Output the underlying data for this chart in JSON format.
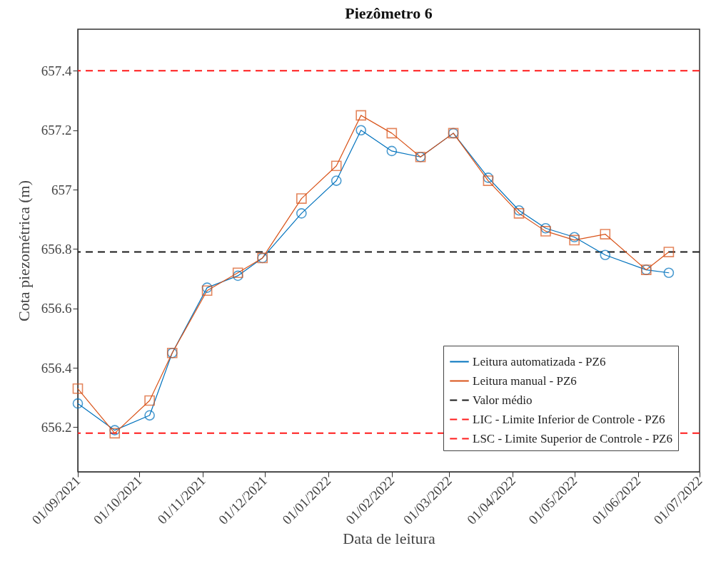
{
  "chart_data": {
    "type": "line",
    "title": "Piezômetro 6",
    "xlabel": "Data de leitura",
    "ylabel": "Cota piezométrica (m)",
    "x": [
      "2021-09-01",
      "2021-09-19",
      "2021-10-06",
      "2021-10-17",
      "2021-11-03",
      "2021-11-18",
      "2021-11-30",
      "2021-12-19",
      "2022-01-05",
      "2022-01-17",
      "2022-02-01",
      "2022-02-15",
      "2022-03-03",
      "2022-03-20",
      "2022-04-04",
      "2022-04-17",
      "2022-05-01",
      "2022-05-16",
      "2022-06-05",
      "2022-06-16"
    ],
    "series": [
      {
        "name": "Leitura automatizada - PZ6",
        "color": "#0072bd",
        "marker": "circle",
        "values": [
          656.28,
          656.19,
          656.24,
          656.45,
          656.67,
          656.71,
          656.77,
          656.92,
          657.03,
          657.2,
          657.13,
          657.11,
          657.19,
          657.04,
          656.93,
          656.87,
          656.84,
          656.78,
          656.73,
          656.72
        ]
      },
      {
        "name": "Leitura manual - PZ6",
        "color": "#d95319",
        "marker": "square",
        "values": [
          656.33,
          656.18,
          656.29,
          656.45,
          656.66,
          656.72,
          656.77,
          656.97,
          657.08,
          657.25,
          657.19,
          657.11,
          657.19,
          657.03,
          656.92,
          656.86,
          656.83,
          656.85,
          656.73,
          656.79
        ]
      }
    ],
    "ref_lines": [
      {
        "axis": "y",
        "value": 656.79,
        "label": "Valor médio",
        "color": "#1a1a1a",
        "line_style": "dashed"
      },
      {
        "axis": "y",
        "value": 656.18,
        "label": "LIC - Limite Inferior de Controle - PZ6",
        "color": "#ff1a1a",
        "line_style": "dashed"
      },
      {
        "axis": "y",
        "value": 657.4,
        "label": "LSC - Limite Superior de Controle - PZ6",
        "color": "#ff1a1a",
        "line_style": "dashed"
      }
    ],
    "xlim": [
      "2021-09-01",
      "2022-07-01"
    ],
    "xticks": [
      {
        "value": "2021-09-01",
        "label": "01/09/2021"
      },
      {
        "value": "2021-10-01",
        "label": "01/10/2021"
      },
      {
        "value": "2021-11-01",
        "label": "01/11/2021"
      },
      {
        "value": "2021-12-01",
        "label": "01/12/2021"
      },
      {
        "value": "2022-01-01",
        "label": "01/01/2022"
      },
      {
        "value": "2022-02-01",
        "label": "01/02/2022"
      },
      {
        "value": "2022-03-01",
        "label": "01/03/2022"
      },
      {
        "value": "2022-04-01",
        "label": "01/04/2022"
      },
      {
        "value": "2022-05-01",
        "label": "01/05/2022"
      },
      {
        "value": "2022-06-01",
        "label": "01/06/2022"
      },
      {
        "value": "2022-07-01",
        "label": "01/07/2022"
      }
    ],
    "ylim": [
      656.05,
      657.54
    ],
    "yticks": [
      656.2,
      656.4,
      656.6,
      656.8,
      657,
      657.2,
      657.4
    ],
    "legend": "bottom right",
    "line_style": "solid",
    "grid": false
  }
}
